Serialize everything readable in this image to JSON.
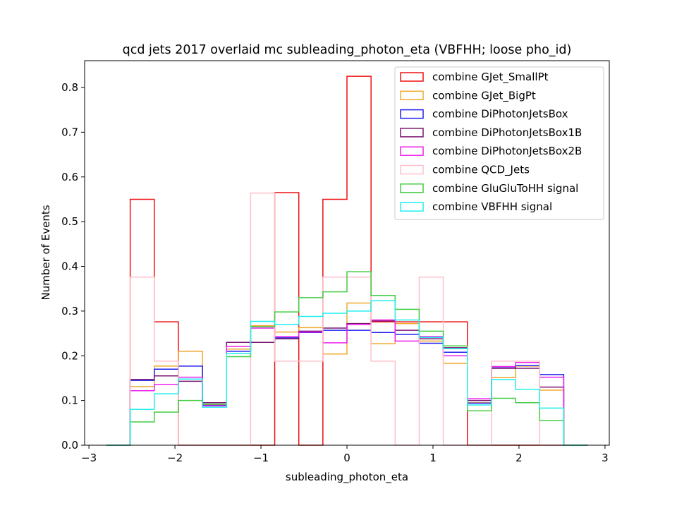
{
  "chart_data": {
    "type": "step-histogram",
    "title": "qcd jets 2017 overlaid mc subleading_photon_eta (VBFHH; loose pho_id)",
    "xlabel": "subleading_photon_eta",
    "ylabel": "Number of Events",
    "xlim": [
      -3.05,
      3.05
    ],
    "ylim": [
      0,
      0.86
    ],
    "xticks": [
      -3,
      -2,
      -1,
      0,
      1,
      2,
      3
    ],
    "xtick_labels": [
      "−3",
      "−2",
      "−1",
      "0",
      "1",
      "2",
      "3"
    ],
    "yticks": [
      0.0,
      0.1,
      0.2,
      0.3,
      0.4,
      0.5,
      0.6,
      0.7,
      0.8
    ],
    "ytick_labels": [
      "0.0",
      "0.1",
      "0.2",
      "0.3",
      "0.4",
      "0.5",
      "0.6",
      "0.7",
      "0.8"
    ],
    "bin_edges": [
      -2.8,
      -2.52,
      -2.24,
      -1.96,
      -1.68,
      -1.4,
      -1.12,
      -0.84,
      -0.56,
      -0.28,
      0.0,
      0.28,
      0.56,
      0.84,
      1.12,
      1.4,
      1.68,
      1.96,
      2.24,
      2.52,
      2.8
    ],
    "legend_position": "upper right",
    "series": [
      {
        "name": "combine GJet_SmallPt",
        "color": "#ee1111",
        "values": [
          0,
          0.55,
          0.276,
          0,
          0,
          0,
          0,
          0.565,
          0,
          0.55,
          0.825,
          0.276,
          0.276,
          0.276,
          0.276,
          0,
          0,
          0,
          0,
          0
        ]
      },
      {
        "name": "combine GJet_BigPt",
        "color": "#f0a830",
        "values": [
          0,
          0.131,
          0.177,
          0.21,
          0.09,
          0.215,
          0.267,
          0.253,
          0.263,
          0.204,
          0.318,
          0.227,
          0.272,
          0.233,
          0.183,
          0.095,
          0.151,
          0.177,
          0.123,
          0
        ]
      },
      {
        "name": "combine DiPhotonJetsBox",
        "color": "#2020ee",
        "values": [
          0,
          0.145,
          0.17,
          0.177,
          0.089,
          0.21,
          0.23,
          0.24,
          0.252,
          0.257,
          0.257,
          0.252,
          0.248,
          0.228,
          0.208,
          0.094,
          0.173,
          0.178,
          0.158,
          0
        ]
      },
      {
        "name": "combine DiPhotonJetsBox1B",
        "color": "#7b1570",
        "values": [
          0,
          0.147,
          0.155,
          0.143,
          0.095,
          0.23,
          0.23,
          0.238,
          0.255,
          0.262,
          0.272,
          0.278,
          0.257,
          0.238,
          0.218,
          0.1,
          0.172,
          0.172,
          0.13,
          0
        ]
      },
      {
        "name": "combine DiPhotonJetsBox2B",
        "color": "#ee22ee",
        "values": [
          0,
          0.122,
          0.136,
          0.152,
          0.088,
          0.221,
          0.262,
          0.243,
          0.253,
          0.229,
          0.27,
          0.28,
          0.233,
          0.243,
          0.2,
          0.104,
          0.176,
          0.185,
          0.152,
          0
        ]
      },
      {
        "name": "combine QCD_Jets",
        "color": "#ffc0cb",
        "values": [
          0,
          0.376,
          0.188,
          0,
          0,
          0,
          0.564,
          0.188,
          0.188,
          0.376,
          0.376,
          0.188,
          0,
          0.376,
          0,
          0,
          0.188,
          0.188,
          0,
          0
        ]
      },
      {
        "name": "combine GluGluToHH signal",
        "color": "#44cc44",
        "values": [
          0,
          0.052,
          0.074,
          0.1,
          0.092,
          0.198,
          0.265,
          0.298,
          0.33,
          0.343,
          0.388,
          0.335,
          0.304,
          0.255,
          0.222,
          0.077,
          0.105,
          0.095,
          0.055,
          0
        ]
      },
      {
        "name": "combine VBFHH signal",
        "color": "#22eeee",
        "values": [
          0,
          0.08,
          0.115,
          0.148,
          0.085,
          0.205,
          0.277,
          0.27,
          0.288,
          0.295,
          0.3,
          0.323,
          0.28,
          0.241,
          0.216,
          0.09,
          0.147,
          0.125,
          0.083,
          0
        ]
      }
    ]
  }
}
